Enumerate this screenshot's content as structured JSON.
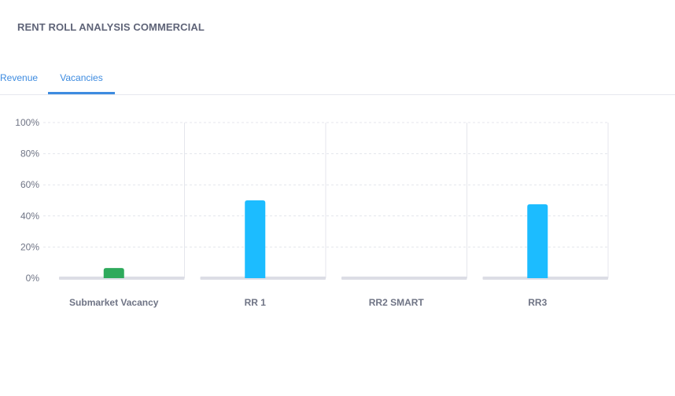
{
  "page": {
    "title": "RENT ROLL ANALYSIS COMMERCIAL"
  },
  "tabs": [
    {
      "label": "Revenue",
      "active": false
    },
    {
      "label": "Vacancies",
      "active": true
    }
  ],
  "chart_data": {
    "type": "bar",
    "categories": [
      "Submarket Vacancy",
      "RR 1",
      "RR2 SMART",
      "RR3"
    ],
    "values": [
      6.5,
      50,
      0,
      47.5
    ],
    "colors": [
      "#2eaa5c",
      "#1cbcff",
      "#1cbcff",
      "#1cbcff"
    ],
    "ylim": [
      0,
      100
    ],
    "yticks": [
      0,
      20,
      40,
      60,
      80,
      100
    ],
    "ytick_format": "%",
    "grid": true
  }
}
